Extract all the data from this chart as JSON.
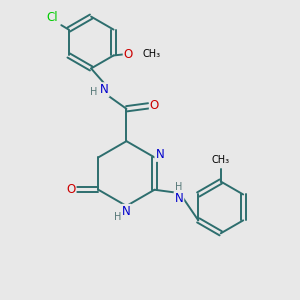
{
  "bg_color": "#e8e8e8",
  "bond_color": "#2d6e6e",
  "atom_N": "#0000cc",
  "atom_O": "#cc0000",
  "atom_Cl": "#00cc00",
  "atom_H": "#557777",
  "atom_C": "#000000",
  "figsize": [
    3.0,
    3.0
  ],
  "dpi": 100,
  "xlim": [
    0,
    10
  ],
  "ylim": [
    0,
    10
  ]
}
